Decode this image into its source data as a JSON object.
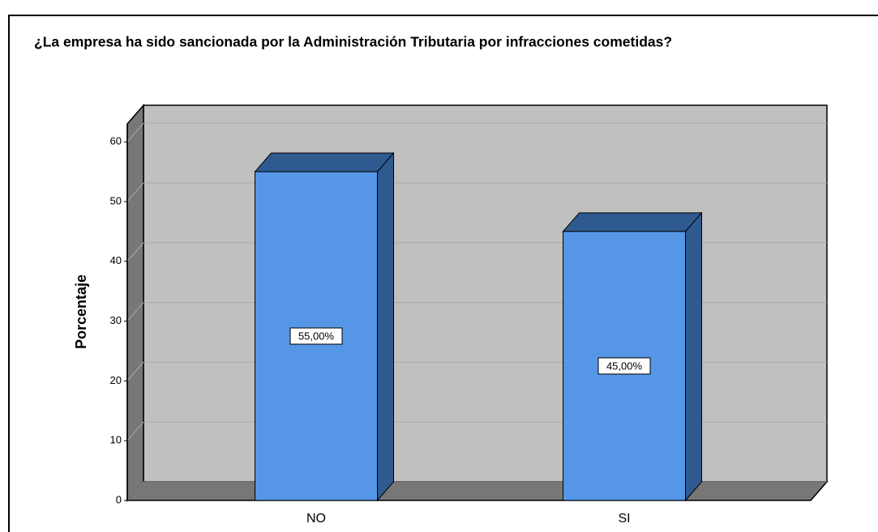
{
  "chart_data": {
    "type": "bar3d",
    "title": "¿La empresa ha sido sancionada por la Administración Tributaria por infracciones cometidas?",
    "ylabel": "Porcentaje",
    "categories": [
      "NO",
      "SI"
    ],
    "values": [
      55,
      45
    ],
    "value_labels": [
      "55,00%",
      "45,00%"
    ],
    "color": "#5596e6",
    "ylim": [
      0,
      63
    ],
    "yticks": [
      0,
      10,
      20,
      30,
      40,
      50,
      60
    ],
    "grid": true
  }
}
